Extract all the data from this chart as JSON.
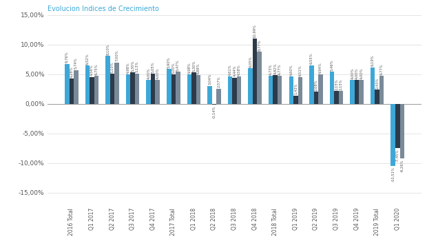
{
  "categories": [
    "2016 Total",
    "Q1 2017",
    "Q2 2017",
    "Q3 2017",
    "Q4 2017",
    "2017 Total",
    "Q1 2018",
    "Q2 2018",
    "Q3 2018",
    "Q4 2018",
    "2018 Total",
    "Q1 2019",
    "Q2 2019",
    "Q3 2019",
    "Q4 2019",
    "2019 Total",
    "Q1 2020"
  ],
  "bar1": [
    6.76,
    6.52,
    8.1,
    4.98,
    4.0,
    5.9,
    4.98,
    3.04,
    4.61,
    6.05,
    4.73,
    4.6,
    6.55,
    5.46,
    4.0,
    6.19,
    -10.51
  ],
  "bar2": [
    4.28,
    4.56,
    5.1,
    5.3,
    5.05,
    5.0,
    5.3,
    -0.14,
    4.44,
    10.99,
    4.82,
    1.43,
    2.08,
    2.15,
    4.0,
    2.43,
    -7.45
  ],
  "bar3": [
    5.74,
    4.75,
    7.0,
    5.13,
    4.0,
    5.47,
    4.88,
    2.57,
    4.58,
    8.77,
    4.77,
    4.51,
    4.94,
    2.15,
    4.0,
    4.77,
    -9.26
  ],
  "color1": "#3da8d8",
  "color2": "#2d3a4a",
  "color3": "#7a8a99",
  "title": "Evolucion Indices de Crecimiento",
  "ylim": [
    -17,
    14
  ],
  "yticks": [
    -15,
    -10,
    -5,
    0,
    5,
    10,
    15
  ],
  "title_color": "#3da8d8",
  "title_fontsize": 7
}
